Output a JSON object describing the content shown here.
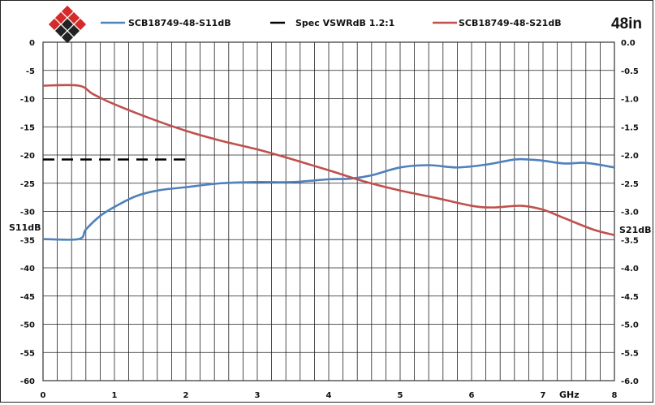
{
  "chart_data": {
    "type": "line",
    "corner_label": "48in",
    "x_unit_label": "GHz",
    "y_left_label": "S11dB",
    "y_right_label": "S21dB",
    "xlim": [
      0,
      8
    ],
    "ylim_left": [
      -60,
      0
    ],
    "ylim_right": [
      -6.0,
      0.0
    ],
    "x_ticks": [
      "0",
      "1",
      "2",
      "3",
      "4",
      "5",
      "6",
      "7",
      "8"
    ],
    "y_left_ticks": [
      "0",
      "-5",
      "-10",
      "-15",
      "-20",
      "-25",
      "-30",
      "-35",
      "-40",
      "-45",
      "-50",
      "-55",
      "-60"
    ],
    "y_right_ticks": [
      "0.0",
      "-0.5",
      "-1.0",
      "-1.5",
      "-2.0",
      "-2.5",
      "-3.0",
      "-3.5",
      "-4.0",
      "-4.5",
      "-5.0",
      "-5.5",
      "-6.0"
    ],
    "grid": true,
    "legend_position": "top",
    "series": [
      {
        "name": "SCB18749-48-S11dB",
        "axis": "left",
        "color": "#4f81bd",
        "style": "solid",
        "x": [
          0,
          0.5,
          0.6,
          0.8,
          1.0,
          1.3,
          1.6,
          2.0,
          2.5,
          3.0,
          3.5,
          4.0,
          4.3,
          4.6,
          5.0,
          5.4,
          5.8,
          6.2,
          6.6,
          6.8,
          7.0,
          7.3,
          7.6,
          8.0
        ],
        "y": [
          -34.9,
          -34.9,
          -33.2,
          -30.8,
          -29.2,
          -27.3,
          -26.3,
          -25.7,
          -25.0,
          -24.8,
          -24.8,
          -24.3,
          -24.2,
          -23.6,
          -22.2,
          -21.8,
          -22.2,
          -21.7,
          -20.8,
          -20.8,
          -21.0,
          -21.5,
          -21.4,
          -22.2
        ]
      },
      {
        "name": "Spec VSWRdB 1.2:1",
        "axis": "left",
        "color": "#000000",
        "style": "dashed",
        "x": [
          0,
          2
        ],
        "y": [
          -20.8,
          -20.8
        ]
      },
      {
        "name": "SCB18749-48-S21dB",
        "axis": "right",
        "color": "#c0504d",
        "style": "solid",
        "x": [
          0,
          0.5,
          0.7,
          1.0,
          1.5,
          2.0,
          2.5,
          3.0,
          3.5,
          4.0,
          4.5,
          5.0,
          5.5,
          6.0,
          6.3,
          6.7,
          7.0,
          7.3,
          7.7,
          8.0
        ],
        "y": [
          -0.77,
          -0.77,
          -0.92,
          -1.1,
          -1.35,
          -1.57,
          -1.75,
          -1.9,
          -2.08,
          -2.27,
          -2.47,
          -2.63,
          -2.76,
          -2.9,
          -2.93,
          -2.9,
          -2.97,
          -3.12,
          -3.32,
          -3.42
        ]
      }
    ]
  }
}
